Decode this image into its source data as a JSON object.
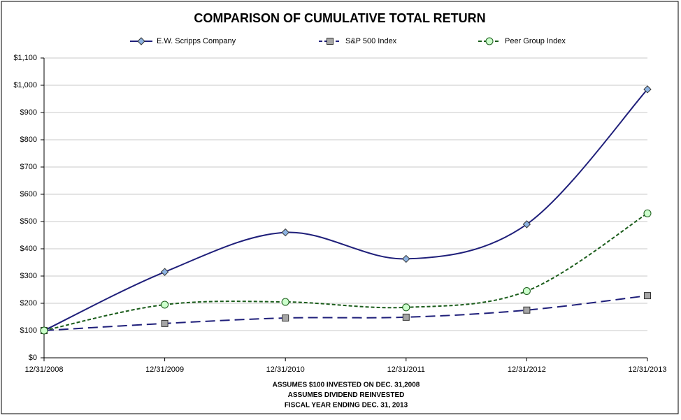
{
  "chart_data": {
    "type": "line",
    "title": "COMPARISON OF CUMULATIVE TOTAL RETURN",
    "categories": [
      "12/31/2008",
      "12/31/2009",
      "12/31/2010",
      "12/31/2011",
      "12/31/2012",
      "12/31/2013"
    ],
    "series": [
      {
        "name": "E.W. Scripps Company",
        "color": "#1f1f7a",
        "line_style": "solid",
        "marker": "diamond",
        "marker_color": "#8db3e2",
        "values": [
          100,
          315,
          460,
          363,
          490,
          985
        ]
      },
      {
        "name": "S&P 500 Index",
        "color": "#1f1f7a",
        "line_style": "dashed",
        "marker": "square",
        "marker_color": "#a6a6a6",
        "values": [
          100,
          126,
          146,
          149,
          175,
          228
        ]
      },
      {
        "name": "Peer Group Index",
        "color": "#1a5c1a",
        "line_style": "dashed",
        "marker": "circle",
        "marker_color": "#ccffcc",
        "values": [
          100,
          195,
          205,
          185,
          245,
          530
        ]
      }
    ],
    "ylim": [
      0,
      1100
    ],
    "yticks": [
      {
        "value": 0,
        "label": "$0"
      },
      {
        "value": 100,
        "label": "$100"
      },
      {
        "value": 200,
        "label": "$200"
      },
      {
        "value": 300,
        "label": "$300"
      },
      {
        "value": 400,
        "label": "$400"
      },
      {
        "value": 500,
        "label": "$500"
      },
      {
        "value": 600,
        "label": "$600"
      },
      {
        "value": 700,
        "label": "$700"
      },
      {
        "value": 800,
        "label": "$800"
      },
      {
        "value": 900,
        "label": "$900"
      },
      {
        "value": 1000,
        "label": "$1,000"
      },
      {
        "value": 1100,
        "label": "$1,100"
      }
    ],
    "grid": true,
    "smooth": true,
    "notes": [
      "ASSUMES $100 INVESTED ON DEC. 31,2008",
      "ASSUMES DIVIDEND REINVESTED",
      "FISCAL YEAR ENDING DEC. 31, 2013"
    ]
  }
}
